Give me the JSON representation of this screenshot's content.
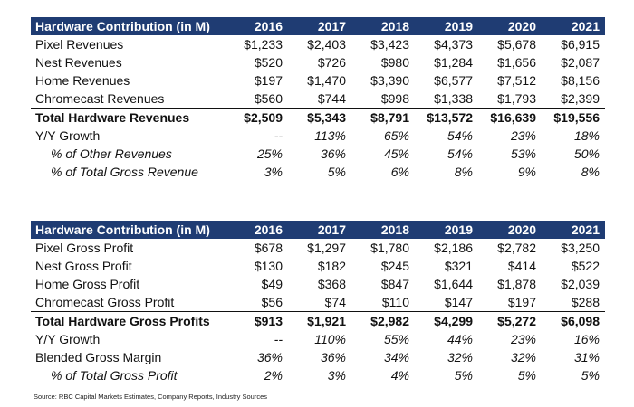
{
  "revenue_table": {
    "header": [
      "Hardware Contribution (in M)",
      "2016",
      "2017",
      "2018",
      "2019",
      "2020",
      "2021"
    ],
    "rows": [
      {
        "style": "normal",
        "cells": [
          "Pixel Revenues",
          "$1,233",
          "$2,403",
          "$3,423",
          "$4,373",
          "$5,678",
          "$6,915"
        ]
      },
      {
        "style": "normal",
        "cells": [
          "Nest Revenues",
          "$520",
          "$726",
          "$980",
          "$1,284",
          "$1,656",
          "$2,087"
        ]
      },
      {
        "style": "normal",
        "cells": [
          "Home Revenues",
          "$197",
          "$1,470",
          "$3,390",
          "$6,577",
          "$7,512",
          "$8,156"
        ]
      },
      {
        "style": "normal",
        "cells": [
          "Chromecast Revenues",
          "$560",
          "$744",
          "$998",
          "$1,338",
          "$1,793",
          "$2,399"
        ]
      },
      {
        "style": "total",
        "cells": [
          "Total Hardware Revenues",
          "$2,509",
          "$5,343",
          "$8,791",
          "$13,572",
          "$16,639",
          "$19,556"
        ]
      },
      {
        "style": "growth",
        "cells": [
          "Y/Y Growth",
          "--",
          "113%",
          "65%",
          "54%",
          "23%",
          "18%"
        ]
      },
      {
        "style": "italic-indent",
        "cells": [
          "% of Other Revenues",
          "25%",
          "36%",
          "45%",
          "54%",
          "53%",
          "50%"
        ]
      },
      {
        "style": "italic-indent",
        "cells": [
          "% of Total Gross Revenue",
          "3%",
          "5%",
          "6%",
          "8%",
          "9%",
          "8%"
        ]
      }
    ]
  },
  "profit_table": {
    "header": [
      "Hardware Contribution (in M)",
      "2016",
      "2017",
      "2018",
      "2019",
      "2020",
      "2021"
    ],
    "rows": [
      {
        "style": "normal",
        "cells": [
          "Pixel Gross Profit",
          "$678",
          "$1,297",
          "$1,780",
          "$2,186",
          "$2,782",
          "$3,250"
        ]
      },
      {
        "style": "normal",
        "cells": [
          "Nest Gross Profit",
          "$130",
          "$182",
          "$245",
          "$321",
          "$414",
          "$522"
        ]
      },
      {
        "style": "normal",
        "cells": [
          "Home Gross Profit",
          "$49",
          "$368",
          "$847",
          "$1,644",
          "$1,878",
          "$2,039"
        ]
      },
      {
        "style": "normal",
        "cells": [
          "Chromecast Gross Profit",
          "$56",
          "$74",
          "$110",
          "$147",
          "$197",
          "$288"
        ]
      },
      {
        "style": "total",
        "cells": [
          "Total Hardware Gross Profits",
          "$913",
          "$1,921",
          "$2,982",
          "$4,299",
          "$5,272",
          "$6,098"
        ]
      },
      {
        "style": "growth",
        "cells": [
          "Y/Y Growth",
          "--",
          "110%",
          "55%",
          "44%",
          "23%",
          "16%"
        ]
      },
      {
        "style": "margin",
        "cells": [
          "Blended Gross Margin",
          "36%",
          "36%",
          "34%",
          "32%",
          "32%",
          "31%"
        ]
      },
      {
        "style": "italic-indent",
        "cells": [
          "% of Total Gross Profit",
          "2%",
          "3%",
          "4%",
          "5%",
          "5%",
          "5%"
        ]
      }
    ]
  },
  "source_note": "Source: RBC Capital Markets Estimates, Company Reports, Industry Sources",
  "colors": {
    "header_bg": "#1f3c73",
    "header_text": "#ffffff"
  }
}
